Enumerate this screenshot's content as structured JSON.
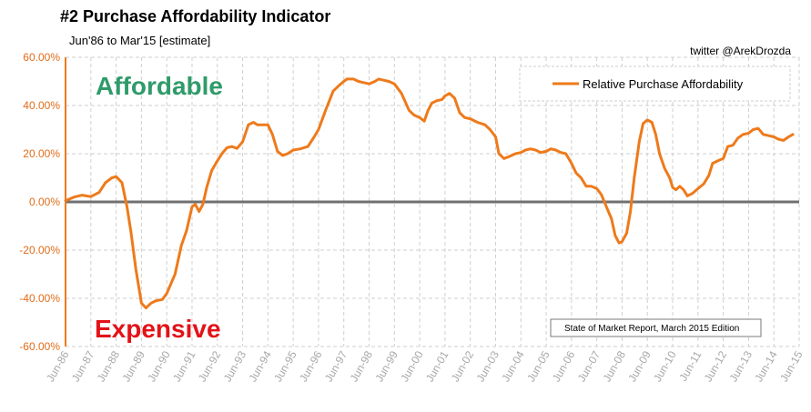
{
  "header": {
    "title": "#2 Purchase Affordability Indicator",
    "subtitle": "Jun'86 to Mar'15 [estimate]",
    "credit": "twitter @ArekDrozda"
  },
  "annotations": {
    "affordable": "Affordable",
    "expensive": "Expensive",
    "source": "State of Market Report, March 2015 Edition"
  },
  "colors": {
    "series": "#ee7a1b",
    "zero_line": "#707070",
    "grid": "#cfcfcf",
    "axis_y": "#ee7a1b",
    "affordable": "#2f9b6a",
    "expensive": "#e21318"
  },
  "chart_data": {
    "type": "line",
    "title": "#2 Purchase Affordability Indicator",
    "subtitle": "Jun'86 to Mar'15 [estimate]",
    "xlabel": "",
    "ylabel": "",
    "ylim": [
      -0.6,
      0.6
    ],
    "xlim": [
      1986.42,
      2015.42
    ],
    "grid": true,
    "legend_position": "top-right",
    "y_ticks": [
      {
        "value": 0.6,
        "label": "60.00%"
      },
      {
        "value": 0.4,
        "label": "40.00%"
      },
      {
        "value": 0.2,
        "label": "20.00%"
      },
      {
        "value": 0.0,
        "label": "0.00%"
      },
      {
        "value": -0.2,
        "label": "-20.00%"
      },
      {
        "value": -0.4,
        "label": "-40.00%"
      },
      {
        "value": -0.6,
        "label": "-60.00%"
      }
    ],
    "x_ticks": [
      {
        "value": 1986.42,
        "label": "Jun-86"
      },
      {
        "value": 1987.42,
        "label": "Jun-87"
      },
      {
        "value": 1988.42,
        "label": "Jun-88"
      },
      {
        "value": 1989.42,
        "label": "Jun-89"
      },
      {
        "value": 1990.42,
        "label": "Jun-90"
      },
      {
        "value": 1991.42,
        "label": "Jun-91"
      },
      {
        "value": 1992.42,
        "label": "Jun-92"
      },
      {
        "value": 1993.42,
        "label": "Jun-93"
      },
      {
        "value": 1994.42,
        "label": "Jun-94"
      },
      {
        "value": 1995.42,
        "label": "Jun-95"
      },
      {
        "value": 1996.42,
        "label": "Jun-96"
      },
      {
        "value": 1997.42,
        "label": "Jun-97"
      },
      {
        "value": 1998.42,
        "label": "Jun-98"
      },
      {
        "value": 1999.42,
        "label": "Jun-99"
      },
      {
        "value": 2000.42,
        "label": "Jun-00"
      },
      {
        "value": 2001.42,
        "label": "Jun-01"
      },
      {
        "value": 2002.42,
        "label": "Jun-02"
      },
      {
        "value": 2003.42,
        "label": "Jun-03"
      },
      {
        "value": 2004.42,
        "label": "Jun-04"
      },
      {
        "value": 2005.42,
        "label": "Jun-05"
      },
      {
        "value": 2006.42,
        "label": "Jun-06"
      },
      {
        "value": 2007.42,
        "label": "Jun-07"
      },
      {
        "value": 2008.42,
        "label": "Jun-08"
      },
      {
        "value": 2009.42,
        "label": "Jun-09"
      },
      {
        "value": 2010.42,
        "label": "Jun-10"
      },
      {
        "value": 2011.42,
        "label": "Jun-11"
      },
      {
        "value": 2012.42,
        "label": "Jun-12"
      },
      {
        "value": 2013.42,
        "label": "Jun-13"
      },
      {
        "value": 2014.42,
        "label": "Jun-14"
      },
      {
        "value": 2015.42,
        "label": "Jun-15"
      }
    ],
    "series": [
      {
        "name": "Relative Purchase Affordability",
        "points": [
          [
            1986.42,
            0.005
          ],
          [
            1986.75,
            0.02
          ],
          [
            1987.08,
            0.028
          ],
          [
            1987.42,
            0.022
          ],
          [
            1987.75,
            0.04
          ],
          [
            1988.0,
            0.08
          ],
          [
            1988.25,
            0.1
          ],
          [
            1988.42,
            0.105
          ],
          [
            1988.65,
            0.08
          ],
          [
            1988.85,
            -0.02
          ],
          [
            1989.0,
            -0.12
          ],
          [
            1989.2,
            -0.28
          ],
          [
            1989.42,
            -0.42
          ],
          [
            1989.6,
            -0.44
          ],
          [
            1989.8,
            -0.42
          ],
          [
            1990.0,
            -0.41
          ],
          [
            1990.25,
            -0.405
          ],
          [
            1990.42,
            -0.38
          ],
          [
            1990.75,
            -0.3
          ],
          [
            1991.0,
            -0.18
          ],
          [
            1991.2,
            -0.12
          ],
          [
            1991.42,
            -0.02
          ],
          [
            1991.55,
            -0.01
          ],
          [
            1991.7,
            -0.04
          ],
          [
            1991.85,
            -0.01
          ],
          [
            1992.0,
            0.06
          ],
          [
            1992.2,
            0.13
          ],
          [
            1992.42,
            0.17
          ],
          [
            1992.6,
            0.2
          ],
          [
            1992.8,
            0.225
          ],
          [
            1993.0,
            0.23
          ],
          [
            1993.2,
            0.222
          ],
          [
            1993.42,
            0.25
          ],
          [
            1993.65,
            0.32
          ],
          [
            1993.85,
            0.33
          ],
          [
            1994.0,
            0.32
          ],
          [
            1994.2,
            0.32
          ],
          [
            1994.42,
            0.32
          ],
          [
            1994.6,
            0.28
          ],
          [
            1994.8,
            0.21
          ],
          [
            1995.0,
            0.193
          ],
          [
            1995.2,
            0.2
          ],
          [
            1995.42,
            0.215
          ],
          [
            1995.7,
            0.22
          ],
          [
            1996.0,
            0.23
          ],
          [
            1996.25,
            0.27
          ],
          [
            1996.42,
            0.3
          ],
          [
            1996.7,
            0.38
          ],
          [
            1997.0,
            0.46
          ],
          [
            1997.2,
            0.48
          ],
          [
            1997.42,
            0.5
          ],
          [
            1997.55,
            0.51
          ],
          [
            1997.8,
            0.51
          ],
          [
            1998.0,
            0.5
          ],
          [
            1998.2,
            0.495
          ],
          [
            1998.42,
            0.49
          ],
          [
            1998.65,
            0.5
          ],
          [
            1998.8,
            0.51
          ],
          [
            1999.0,
            0.505
          ],
          [
            1999.2,
            0.5
          ],
          [
            1999.42,
            0.49
          ],
          [
            1999.7,
            0.45
          ],
          [
            2000.0,
            0.38
          ],
          [
            2000.2,
            0.36
          ],
          [
            2000.42,
            0.35
          ],
          [
            2000.6,
            0.335
          ],
          [
            2000.75,
            0.38
          ],
          [
            2000.9,
            0.41
          ],
          [
            2001.1,
            0.42
          ],
          [
            2001.3,
            0.425
          ],
          [
            2001.42,
            0.44
          ],
          [
            2001.6,
            0.45
          ],
          [
            2001.8,
            0.43
          ],
          [
            2002.0,
            0.37
          ],
          [
            2002.2,
            0.35
          ],
          [
            2002.42,
            0.345
          ],
          [
            2002.7,
            0.33
          ],
          [
            2003.0,
            0.32
          ],
          [
            2003.2,
            0.3
          ],
          [
            2003.42,
            0.27
          ],
          [
            2003.55,
            0.2
          ],
          [
            2003.75,
            0.18
          ],
          [
            2004.0,
            0.19
          ],
          [
            2004.2,
            0.2
          ],
          [
            2004.42,
            0.205
          ],
          [
            2004.6,
            0.215
          ],
          [
            2004.8,
            0.22
          ],
          [
            2005.0,
            0.215
          ],
          [
            2005.2,
            0.205
          ],
          [
            2005.42,
            0.21
          ],
          [
            2005.6,
            0.22
          ],
          [
            2005.8,
            0.215
          ],
          [
            2006.0,
            0.205
          ],
          [
            2006.2,
            0.2
          ],
          [
            2006.42,
            0.16
          ],
          [
            2006.6,
            0.12
          ],
          [
            2006.8,
            0.1
          ],
          [
            2007.0,
            0.065
          ],
          [
            2007.2,
            0.065
          ],
          [
            2007.42,
            0.055
          ],
          [
            2007.6,
            0.03
          ],
          [
            2007.8,
            -0.02
          ],
          [
            2008.0,
            -0.07
          ],
          [
            2008.15,
            -0.14
          ],
          [
            2008.3,
            -0.17
          ],
          [
            2008.42,
            -0.165
          ],
          [
            2008.6,
            -0.13
          ],
          [
            2008.75,
            -0.04
          ],
          [
            2008.9,
            0.1
          ],
          [
            2009.1,
            0.25
          ],
          [
            2009.25,
            0.325
          ],
          [
            2009.42,
            0.34
          ],
          [
            2009.6,
            0.33
          ],
          [
            2009.75,
            0.28
          ],
          [
            2009.9,
            0.2
          ],
          [
            2010.1,
            0.14
          ],
          [
            2010.3,
            0.1
          ],
          [
            2010.42,
            0.06
          ],
          [
            2010.55,
            0.05
          ],
          [
            2010.7,
            0.065
          ],
          [
            2010.85,
            0.05
          ],
          [
            2011.0,
            0.025
          ],
          [
            2011.2,
            0.035
          ],
          [
            2011.42,
            0.055
          ],
          [
            2011.65,
            0.075
          ],
          [
            2011.85,
            0.11
          ],
          [
            2012.0,
            0.16
          ],
          [
            2012.2,
            0.17
          ],
          [
            2012.42,
            0.18
          ],
          [
            2012.6,
            0.23
          ],
          [
            2012.8,
            0.235
          ],
          [
            2013.0,
            0.265
          ],
          [
            2013.2,
            0.28
          ],
          [
            2013.42,
            0.285
          ],
          [
            2013.6,
            0.3
          ],
          [
            2013.8,
            0.305
          ],
          [
            2014.0,
            0.28
          ],
          [
            2014.2,
            0.275
          ],
          [
            2014.42,
            0.27
          ],
          [
            2014.6,
            0.26
          ],
          [
            2014.8,
            0.255
          ],
          [
            2015.0,
            0.27
          ],
          [
            2015.17,
            0.28
          ]
        ]
      }
    ]
  }
}
